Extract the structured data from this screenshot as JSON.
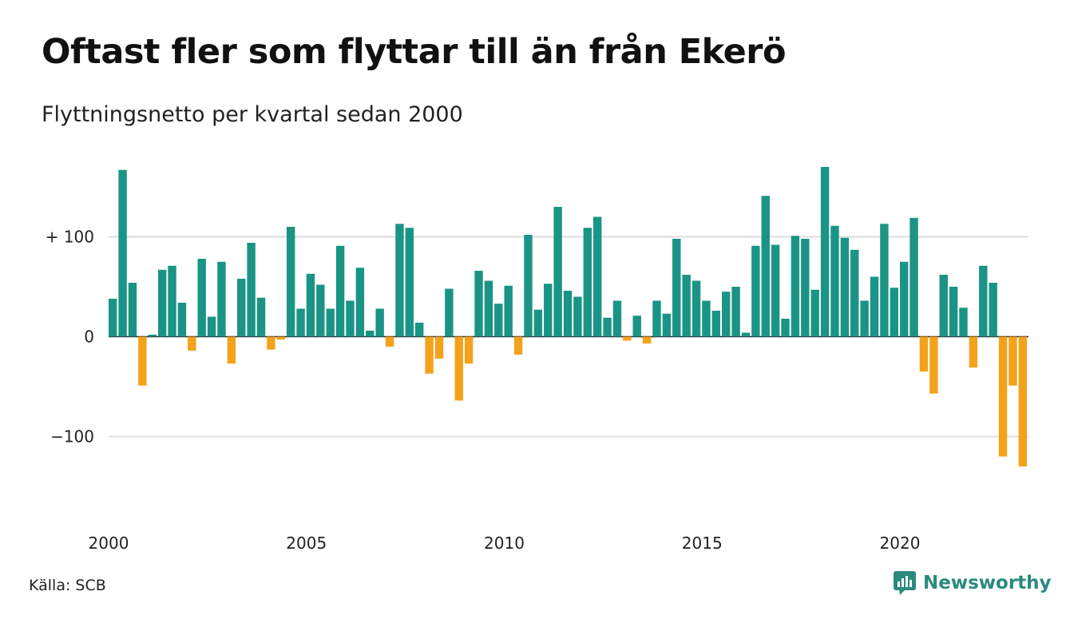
{
  "header": {
    "title": "Oftast fler som flyttar till än från Ekerö",
    "subtitle": "Flyttningsnetto per kvartal sedan 2000"
  },
  "footer": {
    "source": "Källa: SCB",
    "brand": "Newsworthy"
  },
  "colors": {
    "positive": "#1a9485",
    "negative": "#f5a21b",
    "grid": "#dddddd",
    "brand": "#2b8a7e"
  },
  "chart_data": {
    "type": "bar",
    "xlabel": "",
    "ylabel": "",
    "ylim": [
      -150,
      175
    ],
    "y_ticks": [
      {
        "value": 100,
        "label": "+ 100"
      },
      {
        "value": 0,
        "label": "0"
      },
      {
        "value": -100,
        "label": "−100"
      }
    ],
    "x_ticks": [
      {
        "year": 2000,
        "label": "2000"
      },
      {
        "year": 2005,
        "label": "2005"
      },
      {
        "year": 2010,
        "label": "2010"
      },
      {
        "year": 2015,
        "label": "2015"
      },
      {
        "year": 2020,
        "label": "2020"
      }
    ],
    "grid": true,
    "legend": "none",
    "start_period": "2000 Q1",
    "values": [
      38,
      167,
      54,
      -49,
      2,
      67,
      71,
      34,
      -14,
      78,
      20,
      75,
      -27,
      58,
      94,
      39,
      -13,
      -3,
      110,
      28,
      63,
      52,
      28,
      91,
      36,
      69,
      6,
      28,
      -10,
      113,
      109,
      14,
      -37,
      -22,
      48,
      -64,
      -27,
      66,
      56,
      33,
      51,
      -18,
      102,
      27,
      53,
      130,
      46,
      40,
      109,
      120,
      19,
      36,
      -4,
      21,
      -7,
      36,
      23,
      98,
      62,
      56,
      36,
      26,
      45,
      50,
      4,
      91,
      141,
      92,
      18,
      101,
      98,
      47,
      170,
      111,
      99,
      87,
      36,
      60,
      113,
      49,
      75,
      119,
      -35,
      -57,
      62,
      50,
      29,
      -31,
      71,
      54,
      -120,
      -49,
      -130
    ]
  }
}
